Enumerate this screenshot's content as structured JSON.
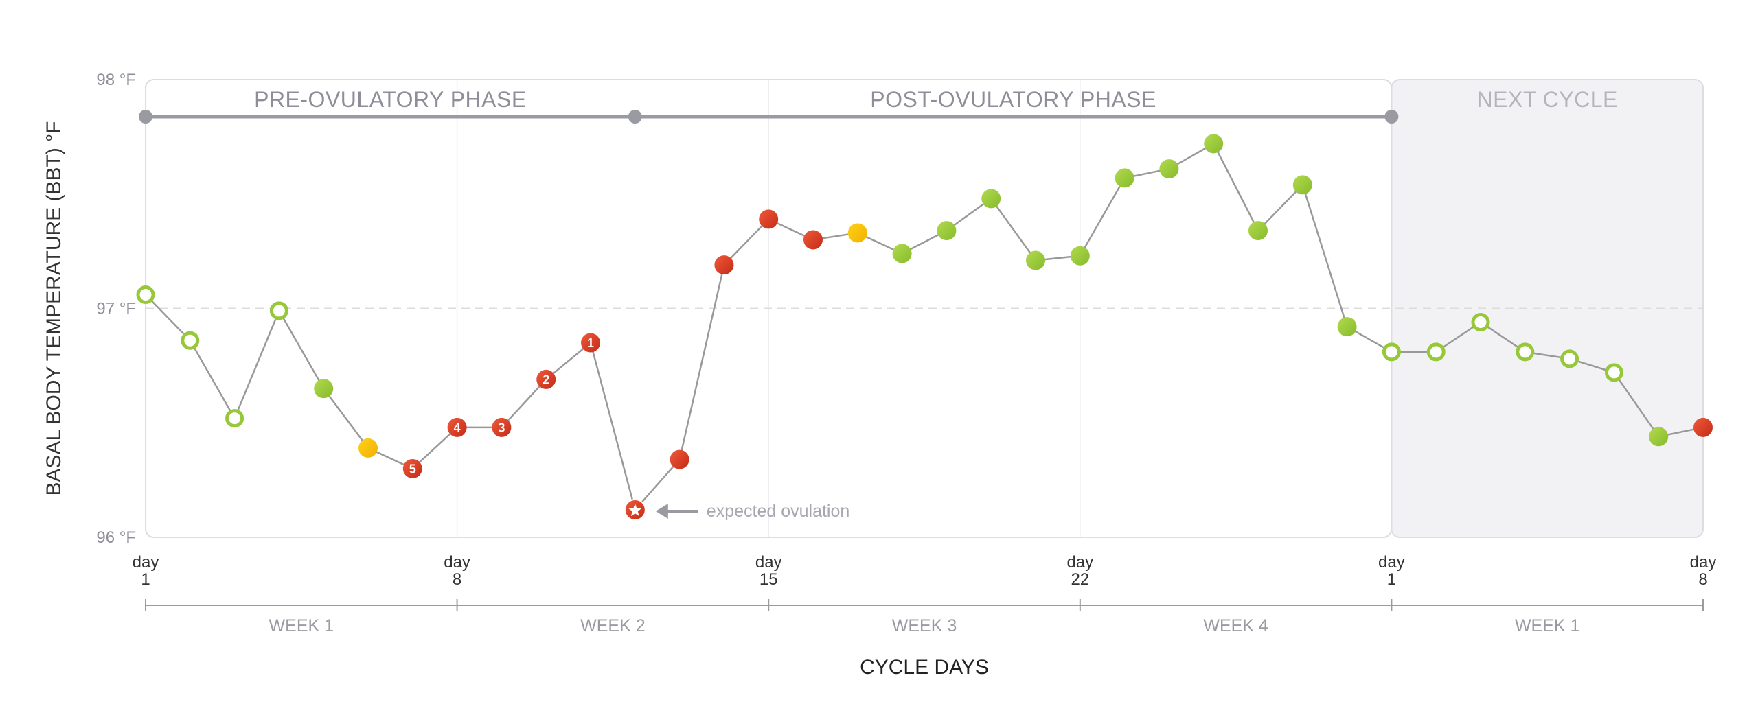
{
  "chart_data": {
    "type": "line",
    "ylabel": "BASAL BODY TEMPERATURE (BBT) °F",
    "xlabel": "CYCLE DAYS",
    "ylim": [
      96,
      98
    ],
    "yticks": [
      {
        "value": 96,
        "label": "96 °F"
      },
      {
        "value": 97,
        "label": "97 °F"
      },
      {
        "value": 98,
        "label": "98 °F"
      }
    ],
    "reference_line": {
      "value": 97,
      "style": "dashed"
    },
    "grid": "vertical at week boundaries",
    "xlim": [
      1,
      36
    ],
    "xticks": [
      {
        "x": 1,
        "top": "day",
        "bottom": "1"
      },
      {
        "x": 8,
        "top": "day",
        "bottom": "8"
      },
      {
        "x": 15,
        "top": "day",
        "bottom": "15"
      },
      {
        "x": 22,
        "top": "day",
        "bottom": "22"
      },
      {
        "x": 29,
        "top": "day",
        "bottom": "1"
      },
      {
        "x": 36,
        "top": "day",
        "bottom": "8"
      }
    ],
    "weeks": [
      {
        "label": "WEEK 1",
        "from": 1,
        "to": 8
      },
      {
        "label": "WEEK 2",
        "from": 8,
        "to": 15
      },
      {
        "label": "WEEK 3",
        "from": 15,
        "to": 22
      },
      {
        "label": "WEEK 4",
        "from": 22,
        "to": 29
      },
      {
        "label": "WEEK 1",
        "from": 29,
        "to": 36
      }
    ],
    "phases": [
      {
        "label": "PRE-OVULATORY PHASE",
        "from": 1,
        "to": 12
      },
      {
        "label": "POST-OVULATORY PHASE",
        "from": 12,
        "to": 29
      }
    ],
    "next_cycle": {
      "label": "NEXT CYCLE",
      "from": 29,
      "to": 36
    },
    "annotation": {
      "text": "expected ovulation",
      "x": 12,
      "y": 96.12
    },
    "colors": {
      "red": "#d63a22",
      "green": "#96c83a",
      "yellow": "#f5c000",
      "line": "#999999",
      "frame": "#dcdce4",
      "phase_bar": "#9a9aa3",
      "next_cycle_fill": "#f2f2f5"
    },
    "points": [
      {
        "x": 1,
        "y": 97.06,
        "marker": "green-ring"
      },
      {
        "x": 2,
        "y": 96.86,
        "marker": "green-ring"
      },
      {
        "x": 3,
        "y": 96.52,
        "marker": "green-ring"
      },
      {
        "x": 4,
        "y": 96.99,
        "marker": "green-ring"
      },
      {
        "x": 5,
        "y": 96.65,
        "marker": "green"
      },
      {
        "x": 6,
        "y": 96.39,
        "marker": "yellow"
      },
      {
        "x": 7,
        "y": 96.3,
        "marker": "red",
        "label": "5"
      },
      {
        "x": 8,
        "y": 96.48,
        "marker": "red",
        "label": "4"
      },
      {
        "x": 9,
        "y": 96.48,
        "marker": "red",
        "label": "3"
      },
      {
        "x": 10,
        "y": 96.69,
        "marker": "red",
        "label": "2"
      },
      {
        "x": 11,
        "y": 96.85,
        "marker": "red",
        "label": "1"
      },
      {
        "x": 12,
        "y": 96.12,
        "marker": "star"
      },
      {
        "x": 13,
        "y": 96.34,
        "marker": "red"
      },
      {
        "x": 14,
        "y": 97.19,
        "marker": "red"
      },
      {
        "x": 15,
        "y": 97.39,
        "marker": "red"
      },
      {
        "x": 16,
        "y": 97.3,
        "marker": "red"
      },
      {
        "x": 17,
        "y": 97.33,
        "marker": "yellow"
      },
      {
        "x": 18,
        "y": 97.24,
        "marker": "green"
      },
      {
        "x": 19,
        "y": 97.34,
        "marker": "green"
      },
      {
        "x": 20,
        "y": 97.48,
        "marker": "green"
      },
      {
        "x": 21,
        "y": 97.21,
        "marker": "green"
      },
      {
        "x": 22,
        "y": 97.23,
        "marker": "green"
      },
      {
        "x": 23,
        "y": 97.57,
        "marker": "green"
      },
      {
        "x": 24,
        "y": 97.61,
        "marker": "green"
      },
      {
        "x": 25,
        "y": 97.72,
        "marker": "green"
      },
      {
        "x": 26,
        "y": 97.34,
        "marker": "green"
      },
      {
        "x": 27,
        "y": 97.54,
        "marker": "green"
      },
      {
        "x": 28,
        "y": 96.92,
        "marker": "green"
      },
      {
        "x": 29,
        "y": 96.81,
        "marker": "green-ring"
      },
      {
        "x": 30,
        "y": 96.81,
        "marker": "green-ring"
      },
      {
        "x": 31,
        "y": 96.94,
        "marker": "green-ring"
      },
      {
        "x": 32,
        "y": 96.81,
        "marker": "green-ring"
      },
      {
        "x": 33,
        "y": 96.78,
        "marker": "green-ring"
      },
      {
        "x": 34,
        "y": 96.72,
        "marker": "green-ring"
      },
      {
        "x": 35,
        "y": 96.44,
        "marker": "green"
      },
      {
        "x": 36,
        "y": 96.48,
        "marker": "red"
      }
    ]
  }
}
